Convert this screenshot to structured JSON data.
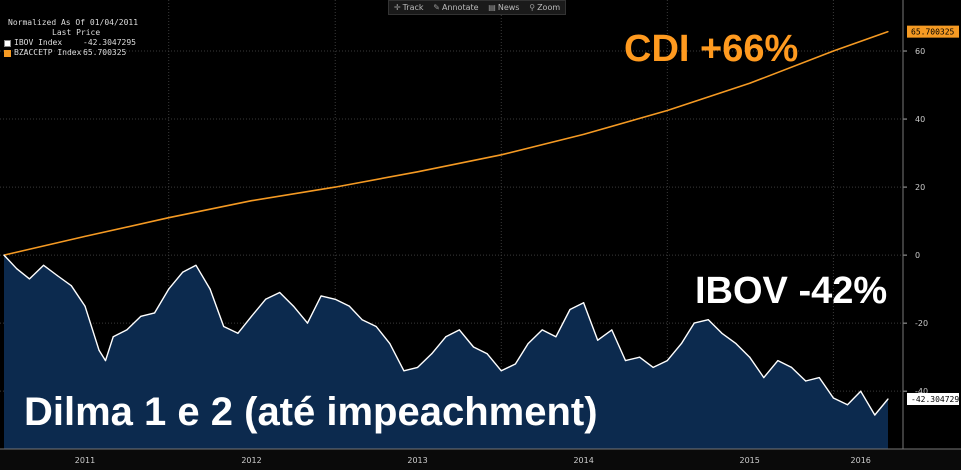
{
  "toolbar": {
    "items": [
      {
        "icon": "crosshair-icon",
        "glyph": "✛",
        "label": "Track"
      },
      {
        "icon": "pencil-icon",
        "glyph": "✎",
        "label": "Annotate"
      },
      {
        "icon": "news-icon",
        "glyph": "▤",
        "label": "News"
      },
      {
        "icon": "magnifier-icon",
        "glyph": "⚲",
        "label": "Zoom"
      }
    ]
  },
  "legend": {
    "header_line1": "Normalized As Of 01/04/2011",
    "header_line2": "Last Price",
    "entries": [
      {
        "name": "IBOV Index",
        "value": "-42.3047295",
        "color": "#ffffff"
      },
      {
        "name": "BZACCETP Index",
        "value": "65.700325",
        "color": "#f59a23"
      }
    ]
  },
  "annotations": {
    "cdi": "CDI +66%",
    "ibov": "IBOV -42%",
    "dilma": "Dilma 1 e 2 (até impeachment)"
  },
  "last_value_flags": {
    "cdi": "65.700325",
    "ibov": "-42.3047295"
  },
  "chart_data": {
    "type": "line",
    "ylim": [
      -57,
      75
    ],
    "y_ticks": [
      60,
      40,
      20,
      0,
      -20,
      -40
    ],
    "x_ticks": [
      "2011",
      "2012",
      "2013",
      "2014",
      "2015",
      "2016"
    ],
    "x_range": [
      "2011-01-04",
      "2016-04-30"
    ],
    "x_tick_dates": [
      "2011-07-01",
      "2012-07-01",
      "2013-07-01",
      "2014-07-01",
      "2015-07-01",
      "2016-03-01"
    ],
    "series": [
      {
        "name": "BZACCETP Index",
        "color": "#f59a23",
        "fill": false,
        "x": [
          "2011-01-04",
          "2011-07-01",
          "2012-01-01",
          "2012-07-01",
          "2013-01-01",
          "2013-07-01",
          "2014-01-01",
          "2014-07-01",
          "2015-01-01",
          "2015-07-01",
          "2016-01-01",
          "2016-04-30"
        ],
        "y": [
          0,
          5.5,
          11,
          16,
          20,
          24.5,
          29.5,
          35.5,
          42.5,
          50.5,
          60,
          65.7
        ]
      },
      {
        "name": "IBOV Index",
        "color": "#ffffff",
        "fill": "#0c2a4e",
        "x": [
          "2011-01-04",
          "2011-02-01",
          "2011-03-01",
          "2011-04-01",
          "2011-05-01",
          "2011-06-01",
          "2011-07-01",
          "2011-08-01",
          "2011-08-15",
          "2011-09-01",
          "2011-10-01",
          "2011-11-01",
          "2011-12-01",
          "2012-01-01",
          "2012-02-01",
          "2012-03-01",
          "2012-04-01",
          "2012-05-01",
          "2012-06-01",
          "2012-07-01",
          "2012-08-01",
          "2012-09-01",
          "2012-10-01",
          "2012-11-01",
          "2012-12-01",
          "2013-01-01",
          "2013-02-01",
          "2013-03-01",
          "2013-04-01",
          "2013-05-01",
          "2013-06-01",
          "2013-07-01",
          "2013-08-01",
          "2013-09-01",
          "2013-10-01",
          "2013-11-01",
          "2013-12-01",
          "2014-01-01",
          "2014-02-01",
          "2014-03-01",
          "2014-04-01",
          "2014-05-01",
          "2014-06-01",
          "2014-07-01",
          "2014-08-01",
          "2014-09-01",
          "2014-10-01",
          "2014-11-01",
          "2014-12-01",
          "2015-01-01",
          "2015-02-01",
          "2015-03-01",
          "2015-04-01",
          "2015-05-01",
          "2015-06-01",
          "2015-07-01",
          "2015-08-01",
          "2015-09-01",
          "2015-10-01",
          "2015-11-01",
          "2015-12-01",
          "2016-01-01",
          "2016-02-01",
          "2016-03-01",
          "2016-04-01",
          "2016-04-30"
        ],
        "y": [
          0,
          -4,
          -7,
          -3,
          -6,
          -9,
          -15,
          -28,
          -31,
          -24,
          -22,
          -18,
          -17,
          -10,
          -5,
          -3,
          -10,
          -21,
          -23,
          -18,
          -13,
          -11,
          -15,
          -20,
          -12,
          -13,
          -15,
          -19,
          -21,
          -26,
          -34,
          -33,
          -29,
          -24,
          -22,
          -27,
          -29,
          -34,
          -32,
          -26,
          -22,
          -24,
          -16,
          -14,
          -25,
          -22,
          -31,
          -30,
          -33,
          -31,
          -26,
          -20,
          -19,
          -23,
          -26,
          -30,
          -36,
          -31,
          -33,
          -37,
          -36,
          -42,
          -44,
          -40,
          -47,
          -42.3
        ]
      }
    ]
  }
}
